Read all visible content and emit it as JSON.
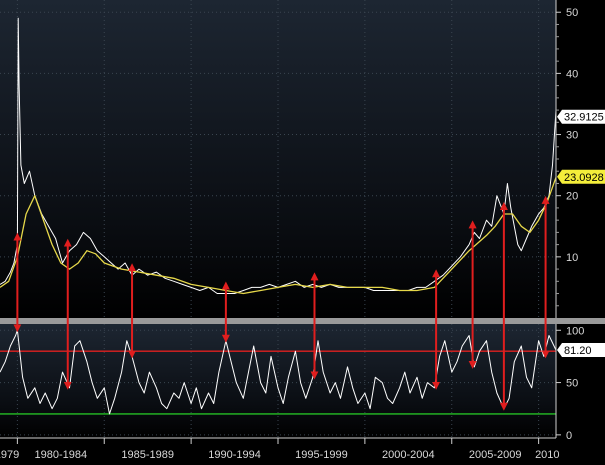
{
  "chart_data": [
    {
      "type": "line",
      "panel": "top",
      "title": "",
      "xlabel": "",
      "ylabel": "",
      "x_range": [
        1979.0,
        2011.0
      ],
      "ylim": [
        0,
        52
      ],
      "y_ticks": [
        10,
        20,
        30,
        40,
        50
      ],
      "grid": true,
      "series": [
        {
          "role": "price",
          "color": "#ffffff",
          "x": [
            1979.0,
            1979.3,
            1979.6,
            1979.8,
            1980.0,
            1980.05,
            1980.1,
            1980.2,
            1980.4,
            1980.7,
            1981.0,
            1981.4,
            1981.8,
            1982.2,
            1982.6,
            1983.0,
            1983.4,
            1983.8,
            1984.2,
            1984.6,
            1985.0,
            1985.4,
            1985.8,
            1986.2,
            1986.6,
            1987.0,
            1987.5,
            1988.0,
            1988.5,
            1989.0,
            1989.5,
            1990.0,
            1990.5,
            1991.0,
            1991.5,
            1992.0,
            1992.5,
            1993.0,
            1993.5,
            1994.0,
            1994.5,
            1995.0,
            1995.5,
            1996.0,
            1996.5,
            1997.0,
            1997.5,
            1998.0,
            1998.5,
            1999.0,
            1999.5,
            2000.0,
            2000.5,
            2001.0,
            2001.5,
            2002.0,
            2002.5,
            2003.0,
            2003.5,
            2004.0,
            2004.5,
            2005.0,
            2005.5,
            2006.0,
            2006.3,
            2006.6,
            2007.0,
            2007.3,
            2007.6,
            2008.0,
            2008.2,
            2008.4,
            2008.6,
            2008.8,
            2009.0,
            2009.3,
            2009.6,
            2010.0,
            2010.3,
            2010.6,
            2010.8,
            2011.0
          ],
          "y": [
            5.5,
            6,
            7.5,
            9,
            12,
            49,
            38,
            25,
            22,
            24,
            20,
            17,
            15,
            13,
            9,
            11,
            12,
            14,
            13,
            11,
            10,
            9,
            8,
            9,
            7,
            8,
            7,
            7.5,
            6.5,
            6,
            5.5,
            5,
            4.5,
            5,
            4,
            4,
            4,
            4.5,
            5,
            5,
            5.5,
            5,
            5.5,
            6,
            5,
            5.5,
            5,
            5.5,
            5,
            5,
            5,
            5,
            4.5,
            4.5,
            4.5,
            4.5,
            4.5,
            5,
            5,
            6,
            7,
            8.5,
            10,
            12,
            14,
            13,
            16,
            15,
            20,
            17,
            22,
            18,
            15,
            12,
            11,
            13,
            15,
            17,
            18,
            20,
            25,
            34
          ]
        },
        {
          "role": "moving-average",
          "color": "#e6d84a",
          "x": [
            1979.0,
            1979.5,
            1980.0,
            1980.5,
            1981.0,
            1981.5,
            1982.0,
            1982.5,
            1983.0,
            1983.5,
            1984.0,
            1984.5,
            1985.0,
            1986.0,
            1987.0,
            1988.0,
            1989.0,
            1990.0,
            1991.0,
            1992.0,
            1993.0,
            1994.0,
            1995.0,
            1996.0,
            1997.0,
            1998.0,
            1999.0,
            2000.0,
            2001.0,
            2002.0,
            2003.0,
            2004.0,
            2005.0,
            2006.0,
            2007.0,
            2007.5,
            2008.0,
            2008.5,
            2009.0,
            2009.5,
            2010.0,
            2010.5,
            2011.0
          ],
          "y": [
            5,
            6,
            10,
            17,
            20,
            16,
            12,
            9,
            8,
            9,
            11,
            10.5,
            9,
            8,
            7.5,
            7,
            6.5,
            5.5,
            5,
            4.5,
            4,
            4.5,
            5,
            5.5,
            5,
            5.5,
            5,
            5,
            5,
            4.5,
            4.5,
            5,
            8,
            11,
            13.5,
            15,
            17,
            17,
            15,
            14,
            16,
            19,
            23
          ]
        }
      ],
      "value_labels": [
        {
          "value": "32.9125",
          "y": 32.9125,
          "bg": "#ffffff"
        },
        {
          "value": "23.0928",
          "y": 23.0928,
          "bg": "#f4ee3a"
        }
      ]
    },
    {
      "type": "line",
      "panel": "bottom",
      "title": "",
      "xlabel": "",
      "ylabel": "",
      "x_range": [
        1979.0,
        2011.0
      ],
      "ylim": [
        -3,
        106
      ],
      "y_ticks": [
        0,
        50,
        100
      ],
      "grid": true,
      "reference_lines": [
        {
          "value": 80,
          "color": "#e02020"
        },
        {
          "value": 20,
          "color": "#25c025"
        }
      ],
      "series": [
        {
          "role": "oscillator",
          "color": "#ffffff",
          "x": [
            1979.0,
            1979.3,
            1979.6,
            1979.9,
            1980.0,
            1980.3,
            1980.6,
            1981.0,
            1981.3,
            1981.6,
            1982.0,
            1982.3,
            1982.6,
            1983.0,
            1983.3,
            1983.6,
            1984.0,
            1984.3,
            1984.6,
            1985.0,
            1985.3,
            1985.6,
            1986.0,
            1986.3,
            1986.6,
            1987.0,
            1987.3,
            1987.6,
            1988.0,
            1988.3,
            1988.6,
            1989.0,
            1989.3,
            1989.6,
            1990.0,
            1990.3,
            1990.6,
            1991.0,
            1991.3,
            1991.6,
            1992.0,
            1992.3,
            1992.6,
            1993.0,
            1993.3,
            1993.6,
            1994.0,
            1994.3,
            1994.6,
            1995.0,
            1995.3,
            1995.6,
            1996.0,
            1996.3,
            1996.6,
            1997.0,
            1997.3,
            1997.6,
            1998.0,
            1998.3,
            1998.6,
            1999.0,
            1999.3,
            1999.6,
            2000.0,
            2000.3,
            2000.6,
            2001.0,
            2001.3,
            2001.6,
            2002.0,
            2002.3,
            2002.6,
            2003.0,
            2003.3,
            2003.6,
            2004.0,
            2004.3,
            2004.6,
            2005.0,
            2005.3,
            2005.6,
            2006.0,
            2006.3,
            2006.6,
            2007.0,
            2007.3,
            2007.6,
            2008.0,
            2008.3,
            2008.6,
            2009.0,
            2009.3,
            2009.6,
            2010.0,
            2010.3,
            2010.6,
            2011.0
          ],
          "y": [
            60,
            70,
            85,
            95,
            100,
            55,
            35,
            45,
            30,
            40,
            25,
            35,
            60,
            45,
            85,
            90,
            70,
            50,
            35,
            45,
            20,
            35,
            60,
            90,
            75,
            50,
            40,
            60,
            45,
            30,
            25,
            40,
            35,
            50,
            30,
            45,
            25,
            40,
            30,
            60,
            90,
            70,
            50,
            35,
            60,
            85,
            50,
            40,
            75,
            45,
            30,
            55,
            80,
            50,
            35,
            55,
            90,
            60,
            40,
            50,
            35,
            65,
            45,
            30,
            40,
            25,
            55,
            50,
            35,
            30,
            45,
            60,
            40,
            55,
            35,
            50,
            45,
            75,
            90,
            60,
            70,
            85,
            95,
            65,
            80,
            90,
            60,
            40,
            25,
            35,
            70,
            85,
            55,
            45,
            90,
            75,
            95,
            81
          ]
        }
      ],
      "value_labels": [
        {
          "value": "81.20",
          "y": 81.2,
          "bg": "#ffffff"
        }
      ]
    }
  ],
  "x_axis_labels": [
    "1979",
    "1980-1984",
    "1985-1989",
    "1990-1994",
    "1995-1999",
    "2000-2004",
    "2005-2009",
    "2010"
  ],
  "arrows": {
    "color": "#e01e1e",
    "at_x": [
      1980.0,
      1982.9,
      1986.6,
      1992.0,
      1997.1,
      2004.1,
      2006.2,
      2008.0,
      2010.4
    ]
  }
}
